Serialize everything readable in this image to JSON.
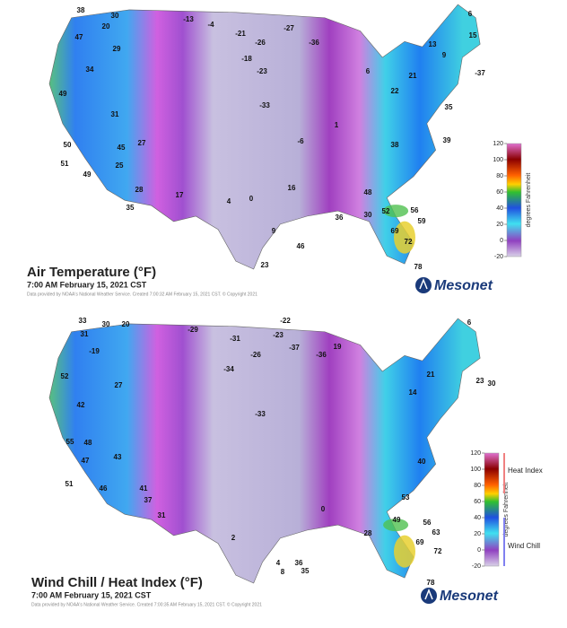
{
  "maps": [
    {
      "title": "Air Temperature (°F)",
      "time": "7:00 AM February 15, 2021 CST",
      "credit": "Data provided by NOAA's National Weather Service. Created 7:00:32 AM February 15, 2021 CST. © Copyright 2021",
      "colorbar": {
        "label": "degrees Fahrenheit",
        "ticks": [
          120,
          100,
          80,
          60,
          40,
          20,
          0,
          -20
        ]
      },
      "readings": [
        38,
        30,
        20,
        -13,
        -4,
        -27,
        6,
        15,
        47,
        29,
        -21,
        -26,
        -36,
        13,
        9,
        34,
        -18,
        -23,
        6,
        21,
        -37,
        49,
        31,
        -33,
        22,
        35,
        50,
        45,
        -6,
        39,
        51,
        25,
        27,
        1,
        38,
        49,
        28,
        17,
        4,
        16,
        48,
        35,
        0,
        30,
        56,
        59,
        69,
        72,
        78,
        23,
        46,
        9,
        36,
        52
      ],
      "logo": "Mesonet"
    },
    {
      "title": "Wind Chill / Heat Index (°F)",
      "time": "7:00 AM February 15, 2021 CST",
      "credit": "Data provided by NOAA's National Weather Service. Created 7:00:35 AM February 15, 2021 CST. © Copyright 2021",
      "colorbar": {
        "label": "degrees Fahrenheit",
        "ticks": [
          120,
          100,
          80,
          60,
          40,
          20,
          0,
          -20
        ],
        "upper_label": "Heat Index",
        "lower_label": "Wind Chill"
      },
      "readings": [
        33,
        30,
        20,
        -29,
        -31,
        -23,
        -22,
        6,
        31,
        -19,
        -26,
        -37,
        19,
        -36,
        52,
        42,
        27,
        -34,
        14,
        23,
        30,
        55,
        43,
        -33,
        21,
        48,
        47,
        51,
        46,
        41,
        31,
        37,
        2,
        0,
        28,
        49,
        56,
        63,
        69,
        72,
        78,
        36,
        35,
        4,
        8,
        53,
        40
      ],
      "logo": "Mesonet"
    }
  ]
}
